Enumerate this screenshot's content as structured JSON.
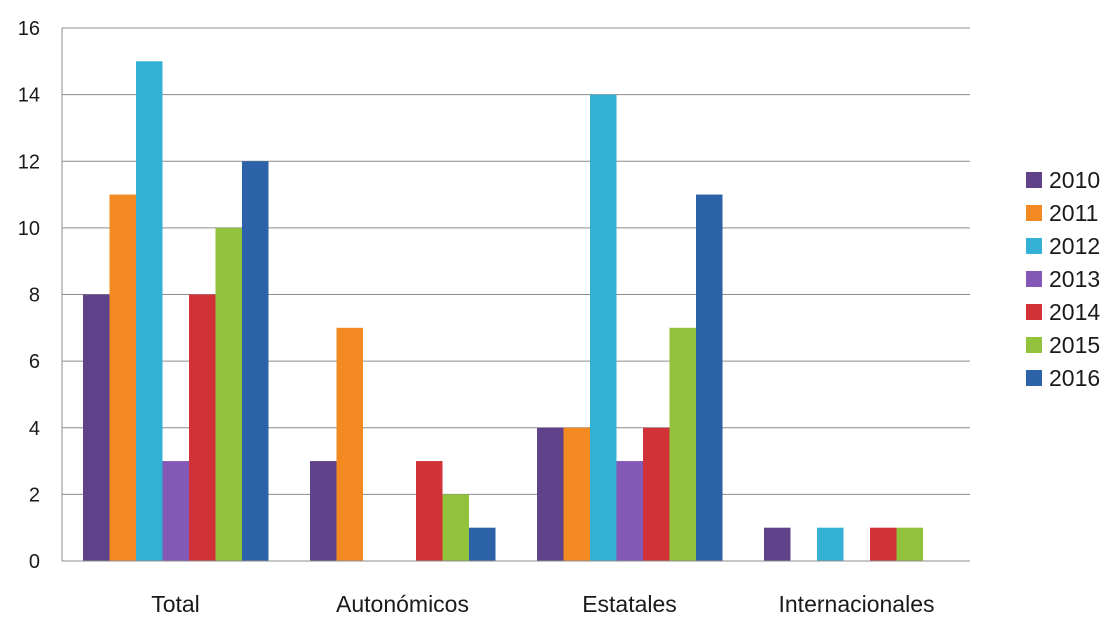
{
  "chart_data": {
    "type": "bar",
    "categories": [
      "Total",
      "Autonómicos",
      "Estatales",
      "Internacionales"
    ],
    "series": [
      {
        "name": "2010",
        "color": "#60428a",
        "values": [
          8,
          3,
          4,
          1
        ]
      },
      {
        "name": "2011",
        "color": "#f28a21",
        "values": [
          11,
          7,
          4,
          0
        ]
      },
      {
        "name": "2012",
        "color": "#33b0d4",
        "values": [
          15,
          0,
          14,
          1
        ]
      },
      {
        "name": "2013",
        "color": "#8358b6",
        "values": [
          3,
          0,
          3,
          0
        ]
      },
      {
        "name": "2014",
        "color": "#d03237",
        "values": [
          8,
          3,
          4,
          1
        ]
      },
      {
        "name": "2015",
        "color": "#92c13c",
        "values": [
          10,
          2,
          7,
          1
        ]
      },
      {
        "name": "2016",
        "color": "#2b62a8",
        "values": [
          12,
          1,
          11,
          0
        ]
      }
    ],
    "ylim": [
      0,
      16
    ],
    "yticks": [
      "0",
      "2",
      "4",
      "6",
      "8",
      "10",
      "12",
      "14",
      "16"
    ],
    "grid": true,
    "legend": "right"
  }
}
